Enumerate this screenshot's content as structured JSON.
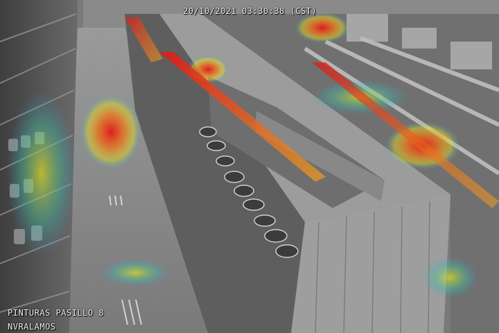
{
  "overlay": {
    "timestamp": "20/10/2021 03:30:38 (CST)",
    "camera_name": "PINTURAS PASILLO 8",
    "recorder_name": "NVRALAMOS"
  },
  "image": {
    "description_tags": [
      "cctv-frame",
      "store-aisle",
      "heatmap-overlay",
      "paint-cans",
      "shelving"
    ],
    "colors": {
      "floor": "#8c8c8c",
      "shelving": "#5a5a5a",
      "heat_low": "#2fa0d8",
      "heat_mid": "#f0e020",
      "heat_high": "#e01818"
    }
  }
}
